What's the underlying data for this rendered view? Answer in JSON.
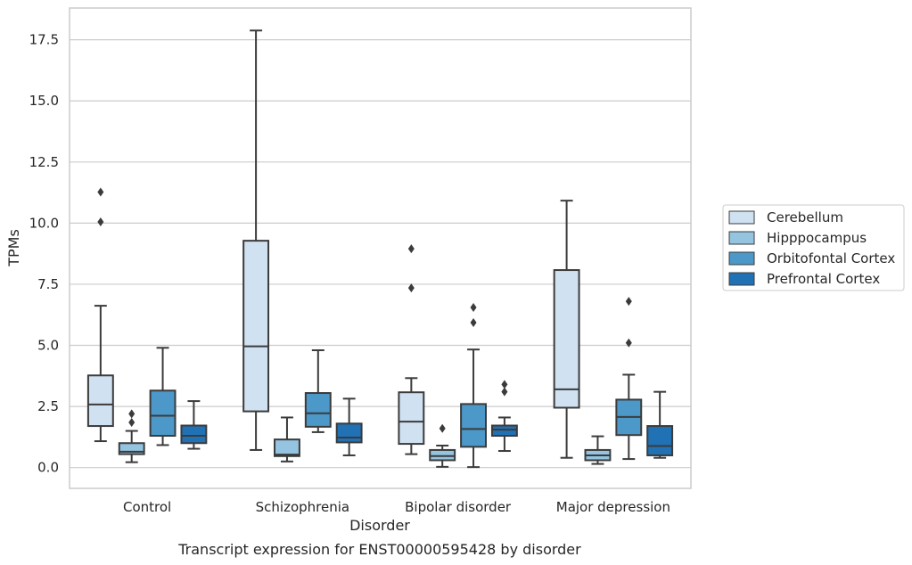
{
  "chart_data": {
    "type": "box",
    "caption": "Transcript expression for ENST00000595428 by disorder",
    "xlabel": "Disorder",
    "ylabel": "TPMs",
    "ylim": [
      -0.85,
      18.8
    ],
    "yticks": [
      "0.0",
      "2.5",
      "5.0",
      "7.5",
      "10.0",
      "12.5",
      "15.0",
      "17.5"
    ],
    "grid": "horizontal",
    "legend_position": "right",
    "categories": [
      "Control",
      "Schizophrenia",
      "Bipolar disorder",
      "Major depression"
    ],
    "series": [
      {
        "name": "Cerebellum",
        "color": "#d0e1f2",
        "boxes": [
          {
            "whisker_low": 1.08,
            "q1": 1.7,
            "median": 2.58,
            "q3": 3.77,
            "whisker_high": 6.62,
            "outliers": [
              10.05,
              11.27
            ]
          },
          {
            "whisker_low": 0.72,
            "q1": 2.3,
            "median": 4.96,
            "q3": 9.28,
            "whisker_high": 17.88,
            "outliers": []
          },
          {
            "whisker_low": 0.55,
            "q1": 0.97,
            "median": 1.88,
            "q3": 3.08,
            "whisker_high": 3.66,
            "outliers": [
              7.35,
              8.95
            ]
          },
          {
            "whisker_low": 0.4,
            "q1": 2.45,
            "median": 3.2,
            "q3": 8.08,
            "whisker_high": 10.92,
            "outliers": []
          }
        ]
      },
      {
        "name": "Hipppocampus",
        "color": "#94c4df",
        "boxes": [
          {
            "whisker_low": 0.22,
            "q1": 0.55,
            "median": 0.65,
            "q3": 1.0,
            "whisker_high": 1.5,
            "outliers": [
              1.85,
              2.2
            ]
          },
          {
            "whisker_low": 0.25,
            "q1": 0.47,
            "median": 0.53,
            "q3": 1.15,
            "whisker_high": 2.05,
            "outliers": []
          },
          {
            "whisker_low": 0.03,
            "q1": 0.3,
            "median": 0.47,
            "q3": 0.72,
            "whisker_high": 0.9,
            "outliers": [
              1.6
            ]
          },
          {
            "whisker_low": 0.15,
            "q1": 0.3,
            "median": 0.5,
            "q3": 0.72,
            "whisker_high": 1.28,
            "outliers": []
          }
        ]
      },
      {
        "name": "Orbitofontal Cortex",
        "color": "#4b98c9",
        "boxes": [
          {
            "whisker_low": 0.92,
            "q1": 1.3,
            "median": 2.12,
            "q3": 3.15,
            "whisker_high": 4.9,
            "outliers": []
          },
          {
            "whisker_low": 1.45,
            "q1": 1.67,
            "median": 2.22,
            "q3": 3.05,
            "whisker_high": 4.8,
            "outliers": []
          },
          {
            "whisker_low": 0.02,
            "q1": 0.85,
            "median": 1.58,
            "q3": 2.6,
            "whisker_high": 4.83,
            "outliers": [
              5.93,
              6.55
            ]
          },
          {
            "whisker_low": 0.35,
            "q1": 1.33,
            "median": 2.07,
            "q3": 2.78,
            "whisker_high": 3.8,
            "outliers": [
              5.1,
              6.8
            ]
          }
        ]
      },
      {
        "name": "Prefrontal Cortex",
        "color": "#2171b5",
        "boxes": [
          {
            "whisker_low": 0.77,
            "q1": 1.0,
            "median": 1.3,
            "q3": 1.72,
            "whisker_high": 2.72,
            "outliers": []
          },
          {
            "whisker_low": 0.5,
            "q1": 1.03,
            "median": 1.23,
            "q3": 1.8,
            "whisker_high": 2.82,
            "outliers": []
          },
          {
            "whisker_low": 0.68,
            "q1": 1.3,
            "median": 1.55,
            "q3": 1.72,
            "whisker_high": 2.05,
            "outliers": [
              3.1,
              3.4
            ]
          },
          {
            "whisker_low": 0.4,
            "q1": 0.5,
            "median": 0.88,
            "q3": 1.7,
            "whisker_high": 3.1,
            "outliers": []
          }
        ]
      }
    ]
  }
}
